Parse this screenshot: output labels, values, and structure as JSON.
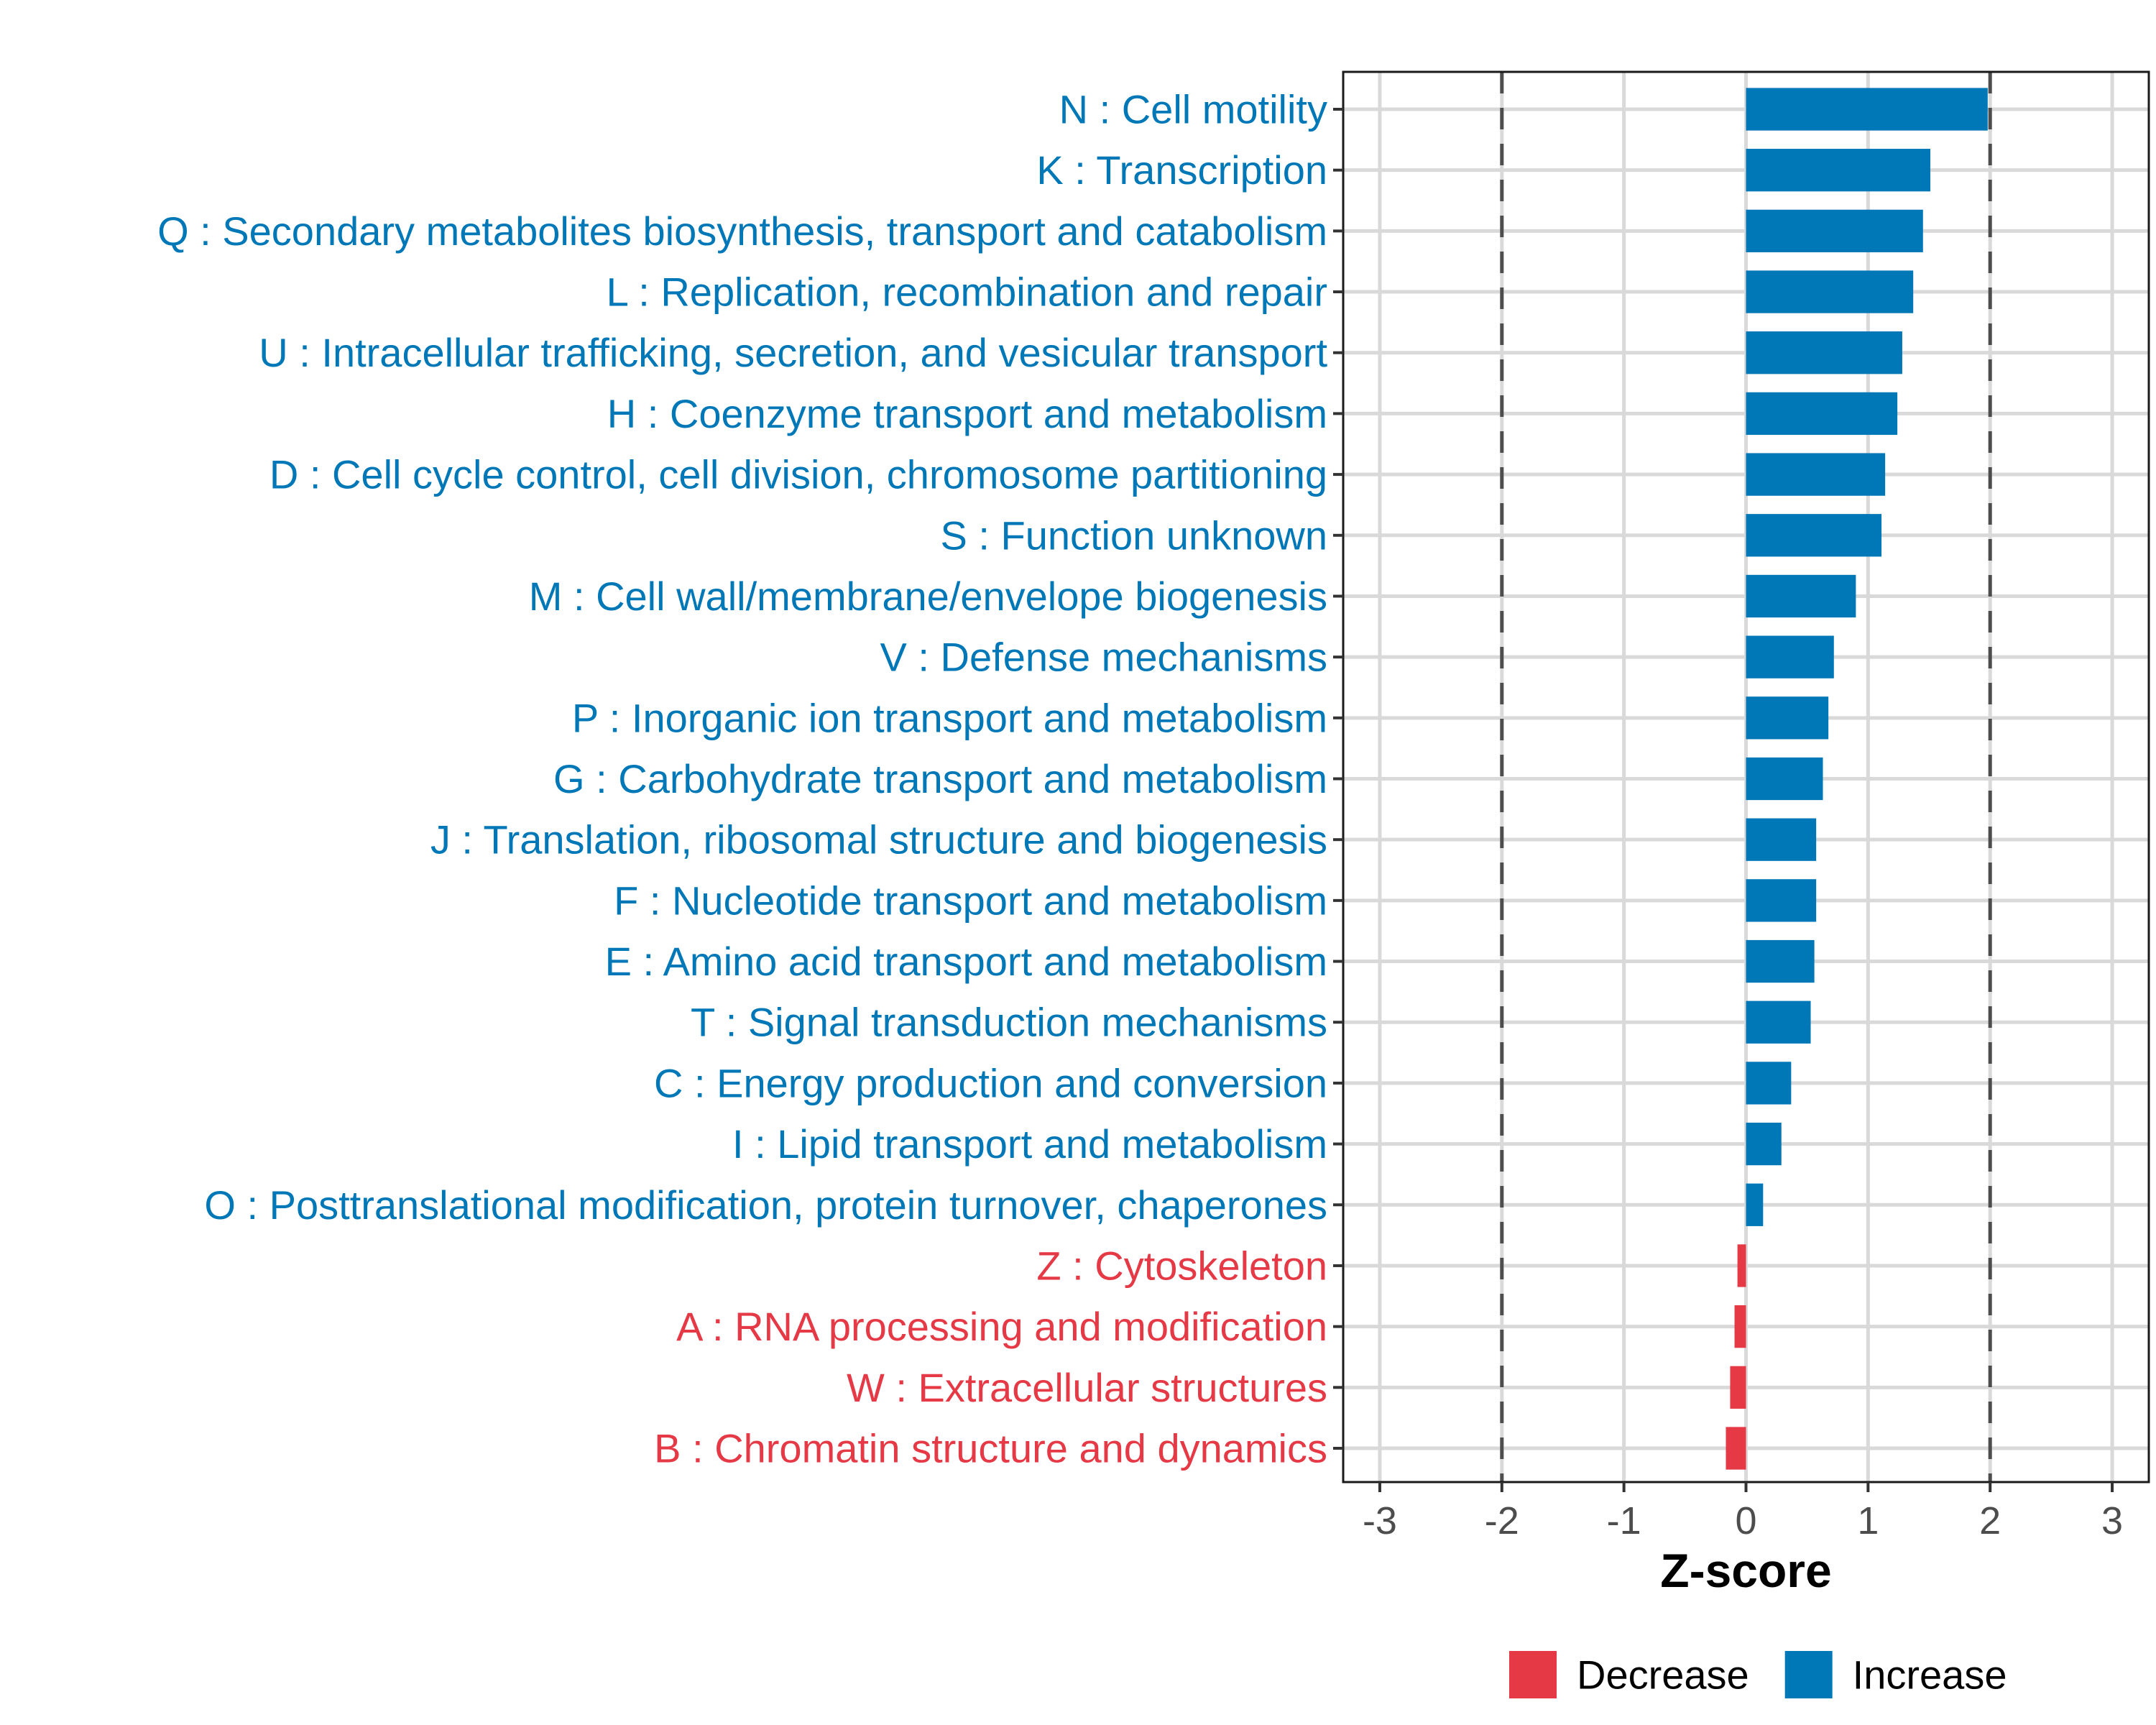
{
  "chart_data": {
    "type": "bar",
    "orientation": "horizontal",
    "title": "",
    "xlabel": "Z-score",
    "ylabel": "",
    "xlim": [
      -3.3,
      3.3
    ],
    "xticks": [
      -3,
      -2,
      -1,
      0,
      1,
      2,
      3
    ],
    "xtick_labels": [
      "-3",
      "-2",
      "-1",
      "0",
      "1",
      "2",
      "3"
    ],
    "reference_lines": [
      -2,
      2
    ],
    "grid": true,
    "legend": {
      "placement": "bottom",
      "entries": [
        {
          "label": "Decrease",
          "color": "#E63946"
        },
        {
          "label": "Increase",
          "color": "#0077B6"
        }
      ]
    },
    "categories": [
      "N : Cell motility",
      "K : Transcription",
      "Q : Secondary metabolites biosynthesis, transport and catabolism",
      "L : Replication, recombination and repair",
      "U : Intracellular trafficking, secretion, and vesicular transport",
      "H : Coenzyme transport and metabolism",
      "D : Cell cycle control, cell division, chromosome partitioning",
      "S : Function unknown",
      "M : Cell wall/membrane/envelope biogenesis",
      "V : Defense mechanisms",
      "P : Inorganic ion transport and metabolism",
      "G : Carbohydrate transport and metabolism",
      "J : Translation, ribosomal structure and biogenesis",
      "F : Nucleotide transport and metabolism",
      "E : Amino acid transport and metabolism",
      "T : Signal transduction mechanisms",
      "C : Energy production and conversion",
      "I : Lipid transport and metabolism",
      "O : Posttranslational modification, protein turnover, chaperones",
      "Z : Cytoskeleton",
      "A : RNA processing and modification",
      "W : Extracellular structures",
      "B : Chromatin structure and dynamics"
    ],
    "values": [
      1.98,
      1.51,
      1.45,
      1.37,
      1.28,
      1.24,
      1.14,
      1.11,
      0.9,
      0.72,
      0.675,
      0.63,
      0.575,
      0.575,
      0.56,
      0.53,
      0.37,
      0.29,
      0.14,
      -0.07,
      -0.094,
      -0.13,
      -0.165
    ],
    "groups": [
      "Increase",
      "Increase",
      "Increase",
      "Increase",
      "Increase",
      "Increase",
      "Increase",
      "Increase",
      "Increase",
      "Increase",
      "Increase",
      "Increase",
      "Increase",
      "Increase",
      "Increase",
      "Increase",
      "Increase",
      "Increase",
      "Increase",
      "Decrease",
      "Decrease",
      "Decrease",
      "Decrease"
    ],
    "colors": {
      "Increase": "#0077B6",
      "Decrease": "#E63946"
    }
  }
}
